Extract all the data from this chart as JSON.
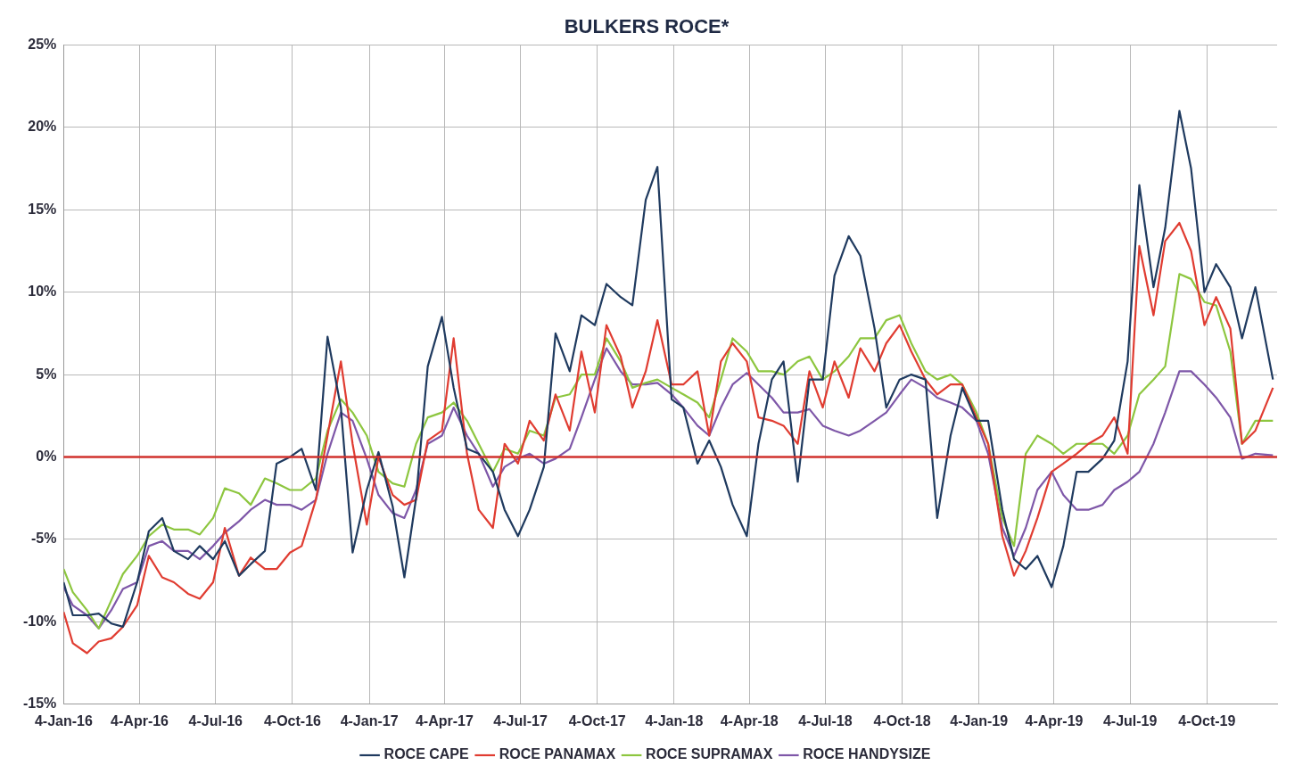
{
  "chart_data": {
    "type": "line",
    "title": "BULKERS ROCE*",
    "x": [
      "2016-01-04",
      "2016-01-15",
      "2016-02-01",
      "2016-02-15",
      "2016-03-01",
      "2016-03-15",
      "2016-04-01",
      "2016-04-15",
      "2016-05-01",
      "2016-05-15",
      "2016-06-01",
      "2016-06-15",
      "2016-07-01",
      "2016-07-15",
      "2016-08-01",
      "2016-08-15",
      "2016-09-01",
      "2016-09-15",
      "2016-10-01",
      "2016-10-15",
      "2016-11-01",
      "2016-11-15",
      "2016-12-01",
      "2016-12-15",
      "2017-01-01",
      "2017-01-15",
      "2017-02-01",
      "2017-02-15",
      "2017-03-01",
      "2017-03-15",
      "2017-04-01",
      "2017-04-15",
      "2017-05-01",
      "2017-05-15",
      "2017-06-01",
      "2017-06-15",
      "2017-07-01",
      "2017-07-15",
      "2017-08-01",
      "2017-08-15",
      "2017-09-01",
      "2017-09-15",
      "2017-10-01",
      "2017-10-15",
      "2017-11-01",
      "2017-11-15",
      "2017-12-01",
      "2017-12-15",
      "2018-01-01",
      "2018-01-15",
      "2018-02-01",
      "2018-02-15",
      "2018-03-01",
      "2018-03-15",
      "2018-04-01",
      "2018-04-15",
      "2018-05-01",
      "2018-05-15",
      "2018-06-01",
      "2018-06-15",
      "2018-07-01",
      "2018-07-15",
      "2018-08-01",
      "2018-08-15",
      "2018-09-01",
      "2018-09-15",
      "2018-10-01",
      "2018-10-15",
      "2018-11-01",
      "2018-11-15",
      "2018-12-01",
      "2018-12-15",
      "2019-01-01",
      "2019-01-15",
      "2019-02-01",
      "2019-02-15",
      "2019-03-01",
      "2019-03-15",
      "2019-04-01",
      "2019-04-15",
      "2019-05-01",
      "2019-05-15",
      "2019-06-01",
      "2019-06-15",
      "2019-07-01",
      "2019-07-15",
      "2019-08-01",
      "2019-08-15",
      "2019-09-01",
      "2019-09-15",
      "2019-10-01",
      "2019-10-15",
      "2019-11-01",
      "2019-11-15",
      "2019-12-01",
      "2019-12-22"
    ],
    "series": [
      {
        "name": "ROCE CAPE",
        "color": "#1f3a5f",
        "values": [
          -7.6,
          -9.6,
          -9.6,
          -9.5,
          -10.1,
          -10.3,
          -7.6,
          -4.5,
          -3.7,
          -5.7,
          -6.2,
          -5.4,
          -6.2,
          -5.1,
          -7.2,
          -6.5,
          -5.7,
          -0.4,
          0,
          0.5,
          -2,
          7.3,
          3,
          -5.8,
          -2,
          0.3,
          -3,
          -7.3,
          -2.5,
          5.5,
          8.5,
          4.2,
          0.5,
          0.2,
          -0.9,
          -3.2,
          -4.8,
          -3.2,
          -0.6,
          7.5,
          5.2,
          8.6,
          8,
          10.5,
          9.7,
          9.2,
          15.6,
          17.6,
          3.5,
          3,
          -0.4,
          1,
          -0.6,
          -2.9,
          -4.8,
          0.8,
          4.7,
          5.8,
          -1.5,
          4.7,
          4.7,
          11,
          13.4,
          12.2,
          7.8,
          3,
          4.7,
          5,
          4.7,
          -3.7,
          1.3,
          4.2,
          2.2,
          2.2,
          -3.2,
          -6.2,
          -6.8,
          -6,
          -7.9,
          -5.4,
          -0.9,
          -0.9,
          -0.1,
          1,
          5.8,
          16.5,
          10.3,
          13.9,
          21,
          17.5,
          10,
          11.7,
          10.3,
          7.2,
          10.3,
          4.7
        ]
      },
      {
        "name": "ROCE PANAMAX",
        "color": "#e03c31",
        "values": [
          -9.4,
          -11.3,
          -11.9,
          -11.2,
          -11,
          -10.3,
          -9,
          -6,
          -7.3,
          -7.6,
          -8.3,
          -8.6,
          -7.6,
          -4.3,
          -7.2,
          -6.1,
          -6.8,
          -6.8,
          -5.8,
          -5.4,
          -2.6,
          1.3,
          5.8,
          0.8,
          -4.1,
          0,
          -2.3,
          -2.9,
          -2.6,
          1,
          1.6,
          7.2,
          0.2,
          -3.2,
          -4.3,
          0.8,
          -0.4,
          2.2,
          1,
          3.8,
          1.6,
          6.4,
          2.7,
          8,
          6.1,
          3,
          5.2,
          8.3,
          4.4,
          4.4,
          5.2,
          1.3,
          5.8,
          6.9,
          5.8,
          2.4,
          2.2,
          1.9,
          0.8,
          5.2,
          3,
          5.8,
          3.6,
          6.6,
          5.2,
          6.9,
          8,
          6.4,
          4.7,
          3.8,
          4.4,
          4.4,
          2.4,
          0.8,
          -4.8,
          -7.2,
          -5.7,
          -3.7,
          -0.9,
          -0.4,
          0.2,
          0.8,
          1.3,
          2.4,
          0.2,
          12.8,
          8.6,
          13.1,
          14.2,
          12.5,
          8,
          9.7,
          7.8,
          0.8,
          1.6,
          4.2
        ]
      },
      {
        "name": "ROCE SUPRAMAX",
        "color": "#8dc63f",
        "values": [
          -6.8,
          -8.2,
          -9.3,
          -10.4,
          -8.7,
          -7.1,
          -6,
          -4.8,
          -4.1,
          -4.4,
          -4.4,
          -4.7,
          -3.7,
          -1.9,
          -2.2,
          -2.9,
          -1.3,
          -1.6,
          -2,
          -2,
          -1.3,
          1.6,
          3.5,
          2.7,
          1.3,
          -0.9,
          -1.6,
          -1.8,
          0.8,
          2.4,
          2.7,
          3.3,
          2.2,
          0.8,
          -0.9,
          0.5,
          0.2,
          1.6,
          1.3,
          3.6,
          3.8,
          5,
          5,
          7.2,
          5.8,
          4.2,
          4.5,
          4.7,
          4.2,
          3.8,
          3.3,
          2.4,
          4.7,
          7.2,
          6.4,
          5.2,
          5.2,
          5,
          5.8,
          6.1,
          4.7,
          5.2,
          6.1,
          7.2,
          7.2,
          8.3,
          8.6,
          6.9,
          5.2,
          4.7,
          5,
          4.4,
          2.7,
          0.8,
          -3.7,
          -5.4,
          0.2,
          1.3,
          0.8,
          0.2,
          0.8,
          0.8,
          0.8,
          0.2,
          1.3,
          3.8,
          4.7,
          5.5,
          11.1,
          10.8,
          9.4,
          9.2,
          6.4,
          0.8,
          2.2,
          2.2
        ]
      },
      {
        "name": "ROCE HANDYSIZE",
        "color": "#7e57a8",
        "values": [
          -7.9,
          -9,
          -9.6,
          -10.4,
          -9.3,
          -8,
          -7.6,
          -5.4,
          -5.1,
          -5.7,
          -5.7,
          -6.2,
          -5.4,
          -4.6,
          -3.9,
          -3.2,
          -2.6,
          -2.9,
          -2.9,
          -3.2,
          -2.6,
          0.2,
          2.7,
          2.2,
          -0.1,
          -2.3,
          -3.4,
          -3.7,
          -2,
          0.8,
          1.3,
          3,
          1.3,
          0.2,
          -1.8,
          -0.6,
          -0.1,
          0.2,
          -0.4,
          -0.1,
          0.5,
          2.4,
          4.7,
          6.6,
          5.2,
          4.4,
          4.4,
          4.5,
          3.8,
          3,
          1.9,
          1.3,
          3,
          4.4,
          5.1,
          4.4,
          3.6,
          2.7,
          2.7,
          2.9,
          1.9,
          1.6,
          1.3,
          1.6,
          2.2,
          2.7,
          3.8,
          4.7,
          4.2,
          3.6,
          3.3,
          3,
          2.2,
          0.2,
          -4.3,
          -6,
          -4.3,
          -2,
          -0.9,
          -2.3,
          -3.2,
          -3.2,
          -2.9,
          -2,
          -1.5,
          -0.9,
          0.8,
          2.7,
          5.2,
          5.2,
          4.4,
          3.6,
          2.4,
          -0.1,
          0.2,
          0.1
        ]
      }
    ],
    "xlim": [
      "2016-01-04",
      "2019-12-27"
    ],
    "xticks": [
      {
        "value": "2016-01-04",
        "label": "4-Jan-16"
      },
      {
        "value": "2016-04-04",
        "label": "4-Apr-16"
      },
      {
        "value": "2016-07-04",
        "label": "4-Jul-16"
      },
      {
        "value": "2016-10-04",
        "label": "4-Oct-16"
      },
      {
        "value": "2017-01-04",
        "label": "4-Jan-17"
      },
      {
        "value": "2017-04-04",
        "label": "4-Apr-17"
      },
      {
        "value": "2017-07-04",
        "label": "4-Jul-17"
      },
      {
        "value": "2017-10-04",
        "label": "4-Oct-17"
      },
      {
        "value": "2018-01-04",
        "label": "4-Jan-18"
      },
      {
        "value": "2018-04-04",
        "label": "4-Apr-18"
      },
      {
        "value": "2018-07-04",
        "label": "4-Jul-18"
      },
      {
        "value": "2018-10-04",
        "label": "4-Oct-18"
      },
      {
        "value": "2019-01-04",
        "label": "4-Jan-19"
      },
      {
        "value": "2019-04-04",
        "label": "4-Apr-19"
      },
      {
        "value": "2019-07-04",
        "label": "4-Jul-19"
      },
      {
        "value": "2019-10-04",
        "label": "4-Oct-19"
      }
    ],
    "ylim": [
      -15,
      25
    ],
    "yticks": [
      {
        "value": -15,
        "label": "-15%"
      },
      {
        "value": -10,
        "label": "-10%"
      },
      {
        "value": -5,
        "label": "-5%"
      },
      {
        "value": 0,
        "label": "0%"
      },
      {
        "value": 5,
        "label": "5%"
      },
      {
        "value": 10,
        "label": "10%"
      },
      {
        "value": 15,
        "label": "15%"
      },
      {
        "value": 20,
        "label": "20%"
      },
      {
        "value": 25,
        "label": "25%"
      }
    ],
    "ref_lines": [
      {
        "axis": "y",
        "value": 0,
        "color": "#d0312d"
      }
    ],
    "grid": true,
    "legend": "bottom",
    "marker": "none",
    "line_style": "solid"
  }
}
